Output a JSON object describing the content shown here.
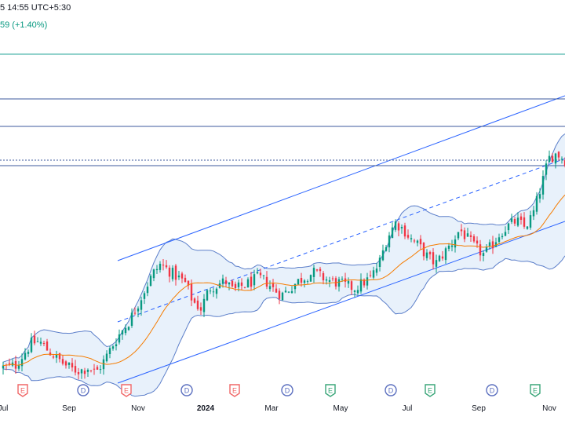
{
  "header": {
    "time_label": "5 14:55 UTC+5:30",
    "change_label": "59 (+1.40%)"
  },
  "colors": {
    "up": "#089981",
    "down": "#f23645",
    "line_blue": "#2962ff",
    "hline_blue": "#3d5a9e",
    "teal_line": "#26a69a",
    "bb_band": "#5b7ec9",
    "bb_fill": "#d6e6f7",
    "basis_orange": "#f57c00",
    "event_red": "#f06767",
    "event_blue": "#5b6fbf",
    "event_green": "#3aa679"
  },
  "time_axis": {
    "labels": [
      "Jul",
      "Sep",
      "Nov",
      "2024",
      "Mar",
      "May",
      "Jul",
      "Sep",
      "Nov"
    ],
    "bold": [
      false,
      false,
      false,
      true,
      false,
      false,
      false,
      false,
      false
    ]
  },
  "event_markers": [
    {
      "type": "E",
      "color": "red"
    },
    {
      "type": "D",
      "color": "blue"
    },
    {
      "type": "E",
      "color": "red"
    },
    {
      "type": "D",
      "color": "blue"
    },
    {
      "type": "E",
      "color": "red"
    },
    {
      "type": "D",
      "color": "blue"
    },
    {
      "type": "E",
      "color": "green"
    },
    {
      "type": "D",
      "color": "blue"
    },
    {
      "type": "E",
      "color": "green"
    },
    {
      "type": "D",
      "color": "blue"
    },
    {
      "type": "E",
      "color": "green"
    }
  ],
  "chart_data": {
    "type": "candlestick",
    "x_axis": "time",
    "start_month": "Jul 2023",
    "price_trend": [
      [
        0,
        20
      ],
      [
        3,
        22
      ],
      [
        5,
        35
      ],
      [
        7,
        48
      ],
      [
        9,
        50
      ],
      [
        11,
        40
      ],
      [
        13,
        32
      ],
      [
        15,
        24
      ],
      [
        17,
        18
      ],
      [
        19,
        16
      ],
      [
        21,
        20
      ],
      [
        23,
        14
      ],
      [
        25,
        28
      ],
      [
        27,
        45
      ],
      [
        29,
        60
      ],
      [
        31,
        72
      ],
      [
        33,
        90
      ],
      [
        35,
        110
      ],
      [
        37,
        128
      ],
      [
        39,
        140
      ],
      [
        41,
        132
      ],
      [
        43,
        125
      ],
      [
        45,
        118
      ],
      [
        47,
        96
      ],
      [
        49,
        88
      ],
      [
        51,
        112
      ],
      [
        53,
        116
      ],
      [
        55,
        120
      ],
      [
        57,
        108
      ],
      [
        59,
        114
      ],
      [
        61,
        118
      ],
      [
        63,
        124
      ],
      [
        65,
        120
      ],
      [
        67,
        110
      ],
      [
        69,
        104
      ],
      [
        71,
        112
      ],
      [
        73,
        120
      ],
      [
        75,
        126
      ],
      [
        77,
        130
      ],
      [
        79,
        124
      ],
      [
        81,
        120
      ],
      [
        83,
        118
      ],
      [
        85,
        114
      ],
      [
        87,
        112
      ],
      [
        89,
        118
      ],
      [
        91,
        124
      ],
      [
        93,
        140
      ],
      [
        95,
        170
      ],
      [
        97,
        188
      ],
      [
        99,
        180
      ],
      [
        101,
        168
      ],
      [
        103,
        160
      ],
      [
        105,
        148
      ],
      [
        107,
        140
      ],
      [
        109,
        152
      ],
      [
        111,
        164
      ],
      [
        113,
        180
      ],
      [
        115,
        168
      ],
      [
        117,
        158
      ],
      [
        119,
        150
      ],
      [
        121,
        162
      ],
      [
        123,
        176
      ],
      [
        125,
        184
      ],
      [
        127,
        190
      ],
      [
        129,
        182
      ],
      [
        131,
        196
      ],
      [
        133,
        228
      ],
      [
        135,
        262
      ],
      [
        137,
        268
      ],
      [
        139,
        260
      ]
    ],
    "horizontal_levels": [
      "level_1",
      "level_2",
      "level_3",
      "level_4",
      "level_5"
    ],
    "indicators": [
      "Bollinger Bands",
      "Bollinger Basis",
      "Parallel Channel"
    ]
  }
}
